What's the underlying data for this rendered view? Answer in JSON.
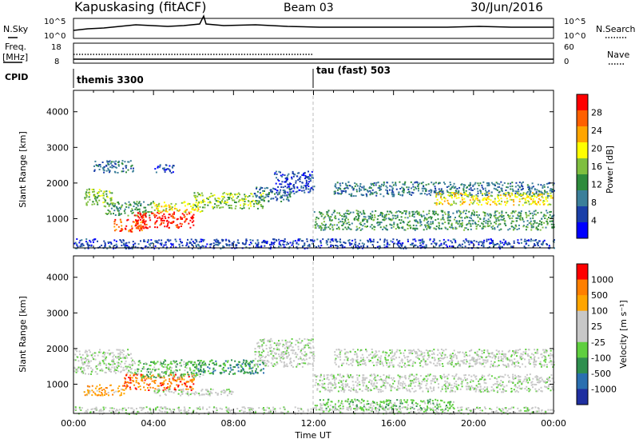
{
  "header": {
    "station": "Kapuskasing (fitACF)",
    "beam": "Beam 03",
    "date": "30/Jun/2016"
  },
  "strips": {
    "nsky_label": "N.Sky",
    "nsky_ticks": [
      "10^5",
      "10^0"
    ],
    "nsearch_label": "N.Search",
    "freq_label_line1": "Freq.",
    "freq_label_line2": "[MHz]",
    "freq_ticks": [
      "18",
      "8"
    ],
    "nave_label": "Nave",
    "nave_ticks": [
      "60",
      "0"
    ],
    "cpid_label": "CPID",
    "cpid_segments": [
      {
        "label": "themis 3300",
        "start_hour": 0
      },
      {
        "label": "tau (fast) 503",
        "start_hour": 12
      }
    ]
  },
  "colors": {
    "power_scale": [
      "#0000ff",
      "#1a3fa8",
      "#3b7f9a",
      "#2e8b3c",
      "#7fbf3f",
      "#ffff00",
      "#ffa500",
      "#ff6000",
      "#ff0000"
    ],
    "velocity_scale": [
      "#1f2fa0",
      "#2a6fb0",
      "#2f8f4f",
      "#5fcf3f",
      "#c8c8c8",
      "#c8c8c8",
      "#ffa500",
      "#ff7f00",
      "#ff0000"
    ]
  },
  "chart_data": [
    {
      "type": "heatmap",
      "name": "power-panel",
      "xlabel": "",
      "ylabel": "Slant Range [km]",
      "xlim": [
        0,
        24
      ],
      "ylim": [
        180,
        4600
      ],
      "yticks": [
        1000,
        2000,
        3000,
        4000
      ],
      "colorbar_label": "Power [dB]",
      "colorbar_ticks": [
        "28",
        "24",
        "20",
        "16",
        "12",
        "8",
        "4"
      ],
      "cells": [
        {
          "t": [
            0.5,
            2.0
          ],
          "r": [
            1400,
            1850
          ],
          "level": 4
        },
        {
          "t": [
            1.0,
            3.0
          ],
          "r": [
            2300,
            2650
          ],
          "level": 2
        },
        {
          "t": [
            1.5,
            4.0
          ],
          "r": [
            1100,
            1500
          ],
          "level": 3
        },
        {
          "t": [
            2.0,
            3.5
          ],
          "r": [
            650,
            1000
          ],
          "level": 7
        },
        {
          "t": [
            3.0,
            6.0
          ],
          "r": [
            750,
            1200
          ],
          "level": 8
        },
        {
          "t": [
            4.0,
            6.5
          ],
          "r": [
            1200,
            1500
          ],
          "level": 5
        },
        {
          "t": [
            6.0,
            9.5
          ],
          "r": [
            1300,
            1750
          ],
          "level": 4
        },
        {
          "t": [
            4.0,
            5.0
          ],
          "r": [
            2300,
            2550
          ],
          "level": 1
        },
        {
          "t": [
            9.0,
            11.0
          ],
          "r": [
            1500,
            1900
          ],
          "level": 2
        },
        {
          "t": [
            10.0,
            12.0
          ],
          "r": [
            1750,
            2350
          ],
          "level": 1
        },
        {
          "t": [
            12.0,
            24.0
          ],
          "r": [
            700,
            1250
          ],
          "level": 3
        },
        {
          "t": [
            13.0,
            24.0
          ],
          "r": [
            1650,
            2050
          ],
          "level": 2
        },
        {
          "t": [
            18.0,
            24.0
          ],
          "r": [
            1400,
            1750
          ],
          "level": 5
        },
        {
          "t": [
            0.0,
            24.0
          ],
          "r": [
            180,
            450
          ],
          "level": 1
        }
      ]
    },
    {
      "type": "heatmap",
      "name": "velocity-panel",
      "xlabel": "Time UT",
      "ylabel": "Slant Range [km]",
      "xlim": [
        0,
        24
      ],
      "ylim": [
        180,
        4600
      ],
      "yticks": [
        1000,
        2000,
        3000,
        4000
      ],
      "xticks": [
        "00:00",
        "04:00",
        "08:00",
        "12:00",
        "16:00",
        "20:00",
        "00:00"
      ],
      "colorbar_label": "Velocity [m s⁻¹]",
      "colorbar_ticks": [
        "1000",
        "500",
        "100",
        "25",
        "-25",
        "-100",
        "-500",
        "-1000"
      ],
      "cells": [
        {
          "t": [
            0.0,
            3.0
          ],
          "r": [
            1300,
            2000
          ],
          "level": 4
        },
        {
          "t": [
            0.5,
            2.5
          ],
          "r": [
            700,
            1000
          ],
          "level": 6
        },
        {
          "t": [
            2.5,
            6.0
          ],
          "r": [
            850,
            1300
          ],
          "level": 7
        },
        {
          "t": [
            3.0,
            6.5
          ],
          "r": [
            1200,
            1700
          ],
          "level": 3
        },
        {
          "t": [
            6.0,
            9.5
          ],
          "r": [
            1300,
            1700
          ],
          "level": 2
        },
        {
          "t": [
            4.0,
            8.0
          ],
          "r": [
            700,
            900
          ],
          "level": 4
        },
        {
          "t": [
            9.0,
            12.0
          ],
          "r": [
            1500,
            2300
          ],
          "level": 4
        },
        {
          "t": [
            12.0,
            24.0
          ],
          "r": [
            800,
            1300
          ],
          "level": 4
        },
        {
          "t": [
            13.0,
            24.0
          ],
          "r": [
            1500,
            2000
          ],
          "level": 4
        },
        {
          "t": [
            12.0,
            19.0
          ],
          "r": [
            300,
            600
          ],
          "level": 3
        },
        {
          "t": [
            0.0,
            24.0
          ],
          "r": [
            180,
            380
          ],
          "level": 4
        }
      ]
    }
  ]
}
